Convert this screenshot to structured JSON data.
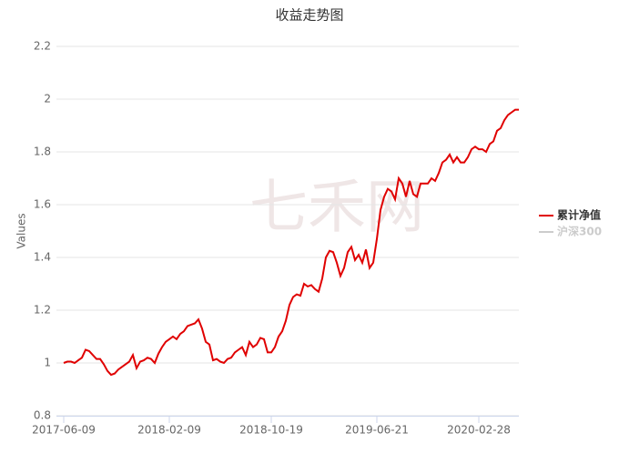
{
  "chart_data": {
    "type": "line",
    "title": "收益走势图",
    "y_label": "Values",
    "watermark": "七禾网",
    "categories": [
      "2017-06-09",
      null,
      null,
      null,
      null,
      null,
      null,
      null,
      null,
      null,
      null,
      null,
      null,
      null,
      null,
      null,
      null,
      null,
      null,
      null,
      null,
      null,
      null,
      null,
      null,
      null,
      null,
      null,
      null,
      "2018-02-09",
      null,
      null,
      null,
      null,
      null,
      null,
      null,
      null,
      null,
      null,
      null,
      null,
      null,
      null,
      null,
      null,
      null,
      null,
      null,
      null,
      null,
      null,
      null,
      null,
      null,
      null,
      null,
      "2018-10-19",
      null,
      null,
      null,
      null,
      null,
      null,
      null,
      null,
      null,
      null,
      null,
      null,
      null,
      null,
      null,
      null,
      null,
      null,
      null,
      null,
      null,
      null,
      null,
      null,
      null,
      null,
      null,
      null,
      "2019-06-21",
      null,
      null,
      null,
      null,
      null,
      null,
      null,
      null,
      null,
      null,
      null,
      null,
      null,
      null,
      null,
      null,
      null,
      null,
      null,
      null,
      null,
      null,
      null,
      null,
      null,
      null,
      null,
      "2020-02-28",
      null,
      null,
      null,
      null,
      null,
      null,
      null,
      null,
      null,
      null,
      null
    ],
    "series": [
      {
        "name": "累计净值",
        "color": "#e00000",
        "visible": true,
        "values": [
          1.0,
          1.005,
          1.005,
          1.0,
          1.01,
          1.02,
          1.05,
          1.045,
          1.03,
          1.015,
          1.015,
          0.995,
          0.97,
          0.955,
          0.96,
          0.975,
          0.985,
          0.995,
          1.005,
          1.03,
          0.98,
          1.005,
          1.01,
          1.02,
          1.015,
          1.0,
          1.035,
          1.06,
          1.08,
          1.09,
          1.1,
          1.09,
          1.11,
          1.12,
          1.14,
          1.145,
          1.15,
          1.165,
          1.13,
          1.08,
          1.07,
          1.01,
          1.015,
          1.005,
          1.0,
          1.015,
          1.02,
          1.04,
          1.05,
          1.06,
          1.03,
          1.08,
          1.06,
          1.07,
          1.095,
          1.09,
          1.04,
          1.04,
          1.06,
          1.1,
          1.12,
          1.16,
          1.22,
          1.25,
          1.26,
          1.255,
          1.3,
          1.29,
          1.295,
          1.28,
          1.27,
          1.32,
          1.4,
          1.425,
          1.42,
          1.38,
          1.33,
          1.36,
          1.42,
          1.44,
          1.39,
          1.41,
          1.38,
          1.43,
          1.36,
          1.38,
          1.47,
          1.58,
          1.63,
          1.66,
          1.65,
          1.62,
          1.7,
          1.68,
          1.63,
          1.69,
          1.64,
          1.63,
          1.68,
          1.68,
          1.68,
          1.7,
          1.69,
          1.72,
          1.76,
          1.77,
          1.79,
          1.76,
          1.78,
          1.76,
          1.76,
          1.78,
          1.81,
          1.82,
          1.81,
          1.81,
          1.8,
          1.83,
          1.84,
          1.88,
          1.89,
          1.92,
          1.94,
          1.95,
          1.96,
          1.96
        ]
      },
      {
        "name": "沪深300",
        "color": "#cccccc",
        "visible": false
      }
    ],
    "ylim": [
      0.8,
      2.2
    ],
    "yticks": [
      0.8,
      1,
      1.2,
      1.4,
      1.6,
      1.8,
      2,
      2.2
    ],
    "grid": true,
    "legend": "right"
  }
}
